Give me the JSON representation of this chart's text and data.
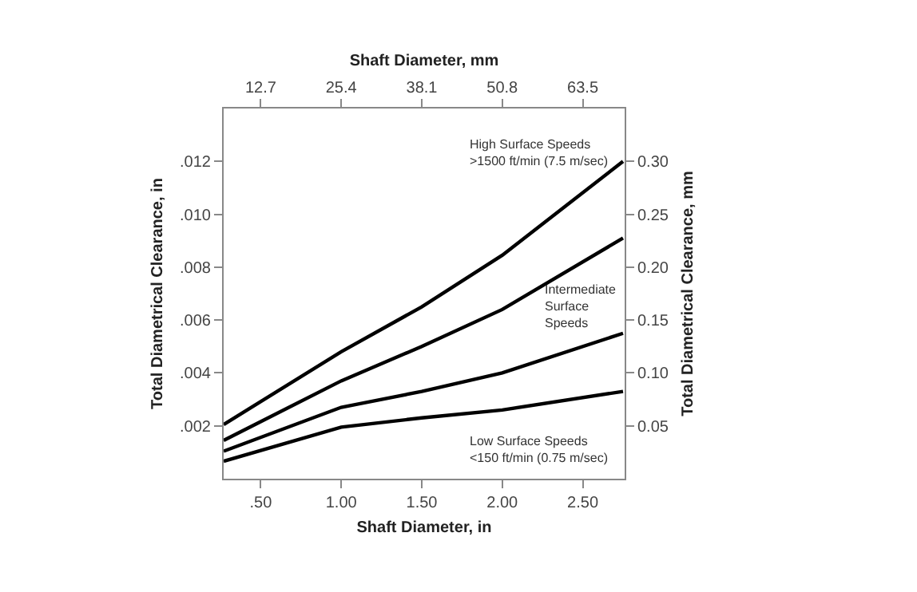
{
  "chart_data": {
    "type": "line",
    "xlabel": "Shaft Diameter, in",
    "x2label": "Shaft Diameter, mm",
    "ylabel": "Total Diametrical Clearance, in",
    "y2label": "Total Diametrical Clearance, mm",
    "x": [
      0.27,
      1.0,
      1.5,
      2.0,
      2.75
    ],
    "series": [
      {
        "color": "#000000",
        "values": [
          0.00205,
          0.0048,
          0.0065,
          0.00845,
          0.012
        ]
      },
      {
        "color": "#000000",
        "values": [
          0.00145,
          0.0037,
          0.005,
          0.0064,
          0.0091
        ]
      },
      {
        "color": "#000000",
        "values": [
          0.00104,
          0.0027,
          0.0033,
          0.004,
          0.0055
        ]
      },
      {
        "color": "#000000",
        "values": [
          0.00066,
          0.00195,
          0.0023,
          0.0026,
          0.0033
        ]
      }
    ],
    "annotations": [
      "High Surface Speeds\n>1500 ft/min (7.5 m/sec)",
      "Intermediate\nSurface\nSpeeds",
      "Low Surface Speeds\n<150 ft/min (0.75 m/sec)"
    ],
    "xlim": [
      0.27,
      2.76
    ],
    "xticks": [
      {
        "value": 0.5,
        "label": ".50"
      },
      {
        "value": 1.0,
        "label": "1.00"
      },
      {
        "value": 1.5,
        "label": "1.50"
      },
      {
        "value": 2.0,
        "label": "2.00"
      },
      {
        "value": 2.5,
        "label": "2.50"
      }
    ],
    "x2lim": [
      6.858,
      70.104
    ],
    "x2ticks": [
      12.7,
      25.4,
      38.1,
      50.8,
      63.5
    ],
    "ylim": [
      0,
      0.014
    ],
    "yticks": [
      {
        "value": 0.002,
        "label": ".002"
      },
      {
        "value": 0.004,
        "label": ".004"
      },
      {
        "value": 0.006,
        "label": ".006"
      },
      {
        "value": 0.008,
        "label": ".008"
      },
      {
        "value": 0.01,
        "label": ".010"
      },
      {
        "value": 0.012,
        "label": ".012"
      }
    ],
    "y2lim": [
      0,
      0.35
    ],
    "y2ticks": [
      {
        "value": 0.05,
        "label": "0.05"
      },
      {
        "value": 0.1,
        "label": "0.10"
      },
      {
        "value": 0.15,
        "label": "0.15"
      },
      {
        "value": 0.2,
        "label": "0.20"
      },
      {
        "value": 0.25,
        "label": "0.25"
      },
      {
        "value": 0.3,
        "label": "0.30"
      }
    ],
    "marker": "none",
    "line_style": "solid"
  }
}
